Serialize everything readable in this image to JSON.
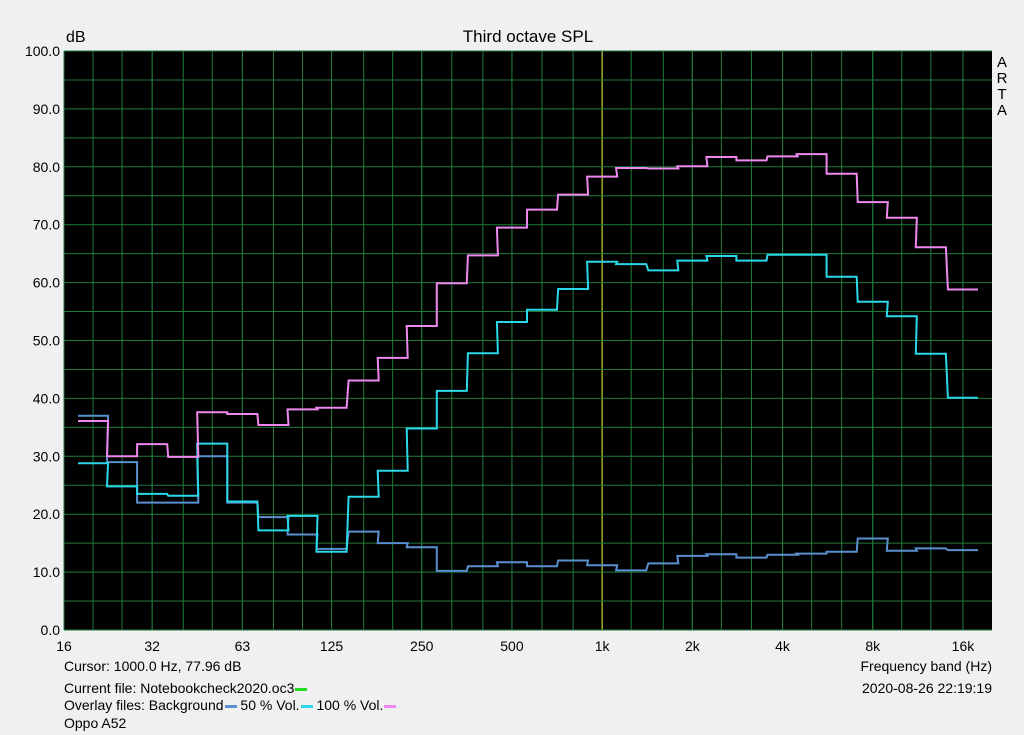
{
  "chart_data": {
    "type": "line",
    "title": "Third octave SPL",
    "ylabel": "dB",
    "xlabel": "Frequency band (Hz)",
    "watermark": "ARTA",
    "x_scale": "log",
    "xlim": [
      16,
      20000
    ],
    "ylim": [
      0,
      100
    ],
    "grid": true,
    "x_tick_labels": [
      "16",
      "32",
      "63",
      "125",
      "250",
      "500",
      "1k",
      "2k",
      "4k",
      "8k",
      "16k"
    ],
    "x_tick_values": [
      16,
      31.5,
      63,
      125,
      250,
      500,
      1000,
      2000,
      4000,
      8000,
      16000
    ],
    "y_tick_labels": [
      "0.0",
      "10.0",
      "20.0",
      "30.0",
      "40.0",
      "50.0",
      "60.0",
      "70.0",
      "80.0",
      "90.0",
      "100.0"
    ],
    "bands": [
      20,
      25,
      31.5,
      40,
      50,
      63,
      80,
      100,
      125,
      160,
      200,
      250,
      315,
      400,
      500,
      630,
      800,
      1000,
      1250,
      1600,
      2000,
      2500,
      3150,
      4000,
      5000,
      6300,
      8000,
      10000,
      12500,
      16000
    ],
    "series": [
      {
        "name": "Background",
        "color": "#5a8fd0",
        "values": [
          37,
          29,
          22,
          22,
          30,
          22,
          19.5,
          16.5,
          14,
          17,
          15,
          14.3,
          10.2,
          11,
          11.7,
          11,
          12,
          11.2,
          10.3,
          11.5,
          12.8,
          13.1,
          12.5,
          13,
          13.2,
          13.5,
          15.8,
          13.7,
          14.1,
          13.8
        ]
      },
      {
        "name": "50 % Vol.",
        "color": "#2ad8e8",
        "values": [
          28.8,
          24.8,
          23.5,
          23.2,
          32.2,
          22.2,
          17.2,
          19.7,
          13.5,
          23,
          27.5,
          34.8,
          41.3,
          47.8,
          53.2,
          55.3,
          58.9,
          63.6,
          63.2,
          62.1,
          63.8,
          64.6,
          63.8,
          64.8,
          64.8,
          61,
          56.7,
          54.2,
          47.7,
          40.1
        ]
      },
      {
        "name": "100 % Vol.",
        "color": "#ee88ee",
        "values": [
          36.1,
          30,
          32.1,
          29.9,
          37.6,
          37.3,
          35.4,
          38.1,
          38.4,
          43.1,
          47,
          52.5,
          59.9,
          64.7,
          69.5,
          72.6,
          75.2,
          78.3,
          79.8,
          79.7,
          80.1,
          81.7,
          81.1,
          81.8,
          82.2,
          78.8,
          73.9,
          71.2,
          66.1,
          58.8
        ]
      }
    ]
  },
  "labels": {
    "cursor": "Cursor:  1000.0 Hz, 77.96 dB",
    "freq_band": "Frequency band (Hz)",
    "current_file_prefix": "Current file: Notebookcheck2020.oc3",
    "overlay_prefix": "Overlay files: Background",
    "overlay_50": " 50 % Vol.",
    "overlay_100": " 100 % Vol.",
    "datetime": "2020-08-26  22:19:19",
    "device": "Oppo A52"
  },
  "colors": {
    "plot_bg": "#000000",
    "grid": "#1f7a3a",
    "cursor_line": "#c8c832",
    "current_file": "#22dd22",
    "background": "#5a8fd0",
    "vol50": "#2ad8e8",
    "vol100": "#ee88ee"
  }
}
